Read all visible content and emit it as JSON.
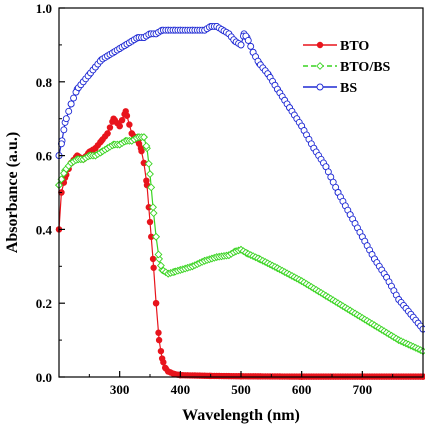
{
  "chart_data": {
    "type": "line",
    "title": "",
    "xlabel": "Wavelength (nm)",
    "ylabel": "Absorbance (a.u.)",
    "xlim": [
      200,
      800
    ],
    "ylim": [
      0.0,
      1.0
    ],
    "x_ticks": [
      300,
      400,
      500,
      600,
      700
    ],
    "y_ticks": [
      0.0,
      0.2,
      0.4,
      0.6,
      0.8,
      1.0
    ],
    "x_tick_labels": [
      "300",
      "400",
      "500",
      "600",
      "700"
    ],
    "y_tick_labels": [
      "0.0",
      "0.2",
      "0.4",
      "0.6",
      "0.8",
      "1.0"
    ],
    "grid": false,
    "legend_position": "top-right",
    "series": [
      {
        "name": "BTO",
        "color": "#e8141c",
        "marker": "filled-circle",
        "points": [
          [
            200,
            0.4
          ],
          [
            204,
            0.5
          ],
          [
            210,
            0.54
          ],
          [
            220,
            0.58
          ],
          [
            230,
            0.6
          ],
          [
            240,
            0.59
          ],
          [
            250,
            0.61
          ],
          [
            260,
            0.62
          ],
          [
            270,
            0.64
          ],
          [
            280,
            0.66
          ],
          [
            290,
            0.7
          ],
          [
            300,
            0.68
          ],
          [
            310,
            0.72
          ],
          [
            320,
            0.66
          ],
          [
            330,
            0.64
          ],
          [
            335,
            0.62
          ],
          [
            340,
            0.58
          ],
          [
            345,
            0.52
          ],
          [
            350,
            0.42
          ],
          [
            355,
            0.32
          ],
          [
            360,
            0.2
          ],
          [
            365,
            0.1
          ],
          [
            370,
            0.05
          ],
          [
            375,
            0.025
          ],
          [
            380,
            0.015
          ],
          [
            390,
            0.008
          ],
          [
            400,
            0.005
          ],
          [
            450,
            0.003
          ],
          [
            500,
            0.002
          ],
          [
            600,
            0.001
          ],
          [
            700,
            0.001
          ],
          [
            800,
            0.001
          ]
        ]
      },
      {
        "name": "BTO/BS",
        "color": "#39d421",
        "marker": "open-diamond",
        "points": [
          [
            200,
            0.52
          ],
          [
            210,
            0.56
          ],
          [
            220,
            0.58
          ],
          [
            230,
            0.59
          ],
          [
            240,
            0.59
          ],
          [
            250,
            0.6
          ],
          [
            260,
            0.6
          ],
          [
            270,
            0.61
          ],
          [
            280,
            0.62
          ],
          [
            290,
            0.63
          ],
          [
            300,
            0.63
          ],
          [
            310,
            0.64
          ],
          [
            320,
            0.64
          ],
          [
            330,
            0.65
          ],
          [
            340,
            0.65
          ],
          [
            345,
            0.62
          ],
          [
            350,
            0.55
          ],
          [
            355,
            0.46
          ],
          [
            360,
            0.38
          ],
          [
            365,
            0.32
          ],
          [
            370,
            0.29
          ],
          [
            380,
            0.28
          ],
          [
            390,
            0.285
          ],
          [
            400,
            0.29
          ],
          [
            420,
            0.3
          ],
          [
            440,
            0.315
          ],
          [
            460,
            0.325
          ],
          [
            480,
            0.33
          ],
          [
            490,
            0.34
          ],
          [
            500,
            0.345
          ],
          [
            510,
            0.335
          ],
          [
            530,
            0.32
          ],
          [
            560,
            0.295
          ],
          [
            600,
            0.26
          ],
          [
            640,
            0.22
          ],
          [
            680,
            0.18
          ],
          [
            720,
            0.14
          ],
          [
            760,
            0.1
          ],
          [
            800,
            0.07
          ]
        ]
      },
      {
        "name": "BS",
        "color": "#1f2ad4",
        "marker": "open-circle",
        "points": [
          [
            200,
            0.6
          ],
          [
            205,
            0.64
          ],
          [
            210,
            0.69
          ],
          [
            220,
            0.74
          ],
          [
            230,
            0.78
          ],
          [
            240,
            0.8
          ],
          [
            250,
            0.82
          ],
          [
            260,
            0.84
          ],
          [
            270,
            0.86
          ],
          [
            280,
            0.87
          ],
          [
            290,
            0.88
          ],
          [
            300,
            0.89
          ],
          [
            310,
            0.9
          ],
          [
            320,
            0.91
          ],
          [
            330,
            0.92
          ],
          [
            340,
            0.92
          ],
          [
            350,
            0.93
          ],
          [
            360,
            0.93
          ],
          [
            370,
            0.94
          ],
          [
            380,
            0.94
          ],
          [
            390,
            0.94
          ],
          [
            400,
            0.94
          ],
          [
            420,
            0.94
          ],
          [
            440,
            0.94
          ],
          [
            450,
            0.95
          ],
          [
            460,
            0.95
          ],
          [
            470,
            0.94
          ],
          [
            480,
            0.93
          ],
          [
            490,
            0.91
          ],
          [
            500,
            0.9
          ],
          [
            505,
            0.93
          ],
          [
            510,
            0.92
          ],
          [
            520,
            0.88
          ],
          [
            530,
            0.85
          ],
          [
            545,
            0.82
          ],
          [
            560,
            0.78
          ],
          [
            580,
            0.73
          ],
          [
            600,
            0.68
          ],
          [
            620,
            0.62
          ],
          [
            640,
            0.57
          ],
          [
            660,
            0.5
          ],
          [
            680,
            0.44
          ],
          [
            700,
            0.38
          ],
          [
            720,
            0.32
          ],
          [
            740,
            0.27
          ],
          [
            760,
            0.21
          ],
          [
            780,
            0.17
          ],
          [
            800,
            0.13
          ]
        ]
      }
    ]
  }
}
